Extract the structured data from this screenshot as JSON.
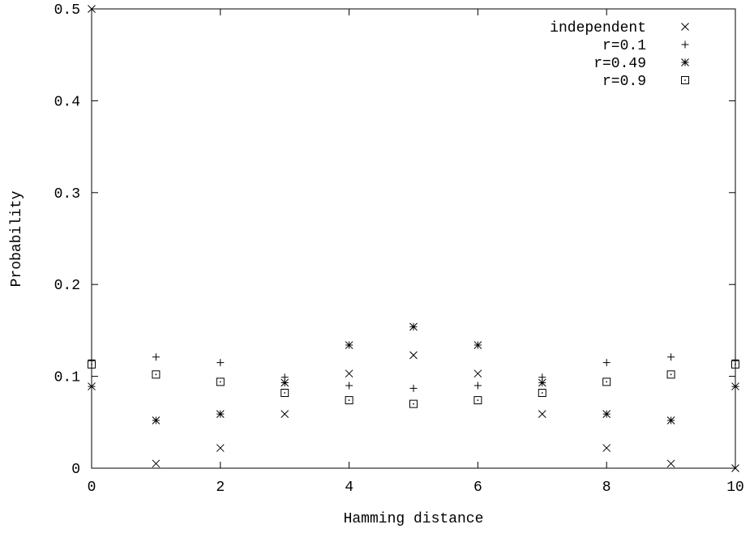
{
  "chart_data": {
    "type": "scatter",
    "title": "",
    "xlabel": "Hamming distance",
    "ylabel": "Probability",
    "xlim": [
      0,
      10
    ],
    "ylim": [
      0,
      0.5
    ],
    "xticks": [
      0,
      2,
      4,
      6,
      8,
      10
    ],
    "xtick_labels": [
      "0",
      "2",
      "4",
      "6",
      "8",
      "10"
    ],
    "yticks": [
      0,
      0.1,
      0.2,
      0.3,
      0.4,
      0.5
    ],
    "ytick_labels": [
      "0",
      "0.1",
      "0.2",
      "0.3",
      "0.4",
      "0.5"
    ],
    "grid": false,
    "legend_position": "top-right",
    "x": [
      0,
      1,
      2,
      3,
      4,
      5,
      6,
      7,
      8,
      9,
      10
    ],
    "series": [
      {
        "name": "independent",
        "marker": "x",
        "values": [
          0.5,
          0.005,
          0.022,
          0.059,
          0.103,
          0.123,
          0.103,
          0.059,
          0.022,
          0.005,
          0.0
        ]
      },
      {
        "name": "r=0.1",
        "marker": "plus",
        "values": [
          0.118,
          0.121,
          0.115,
          0.099,
          0.09,
          0.087,
          0.09,
          0.099,
          0.115,
          0.121,
          0.118
        ]
      },
      {
        "name": "r=0.49",
        "marker": "star",
        "values": [
          0.089,
          0.052,
          0.059,
          0.093,
          0.134,
          0.154,
          0.134,
          0.093,
          0.059,
          0.052,
          0.089
        ]
      },
      {
        "name": "r=0.9",
        "marker": "dotted-square",
        "values": [
          0.113,
          0.102,
          0.094,
          0.082,
          0.074,
          0.07,
          0.074,
          0.082,
          0.094,
          0.102,
          0.113
        ]
      }
    ]
  }
}
